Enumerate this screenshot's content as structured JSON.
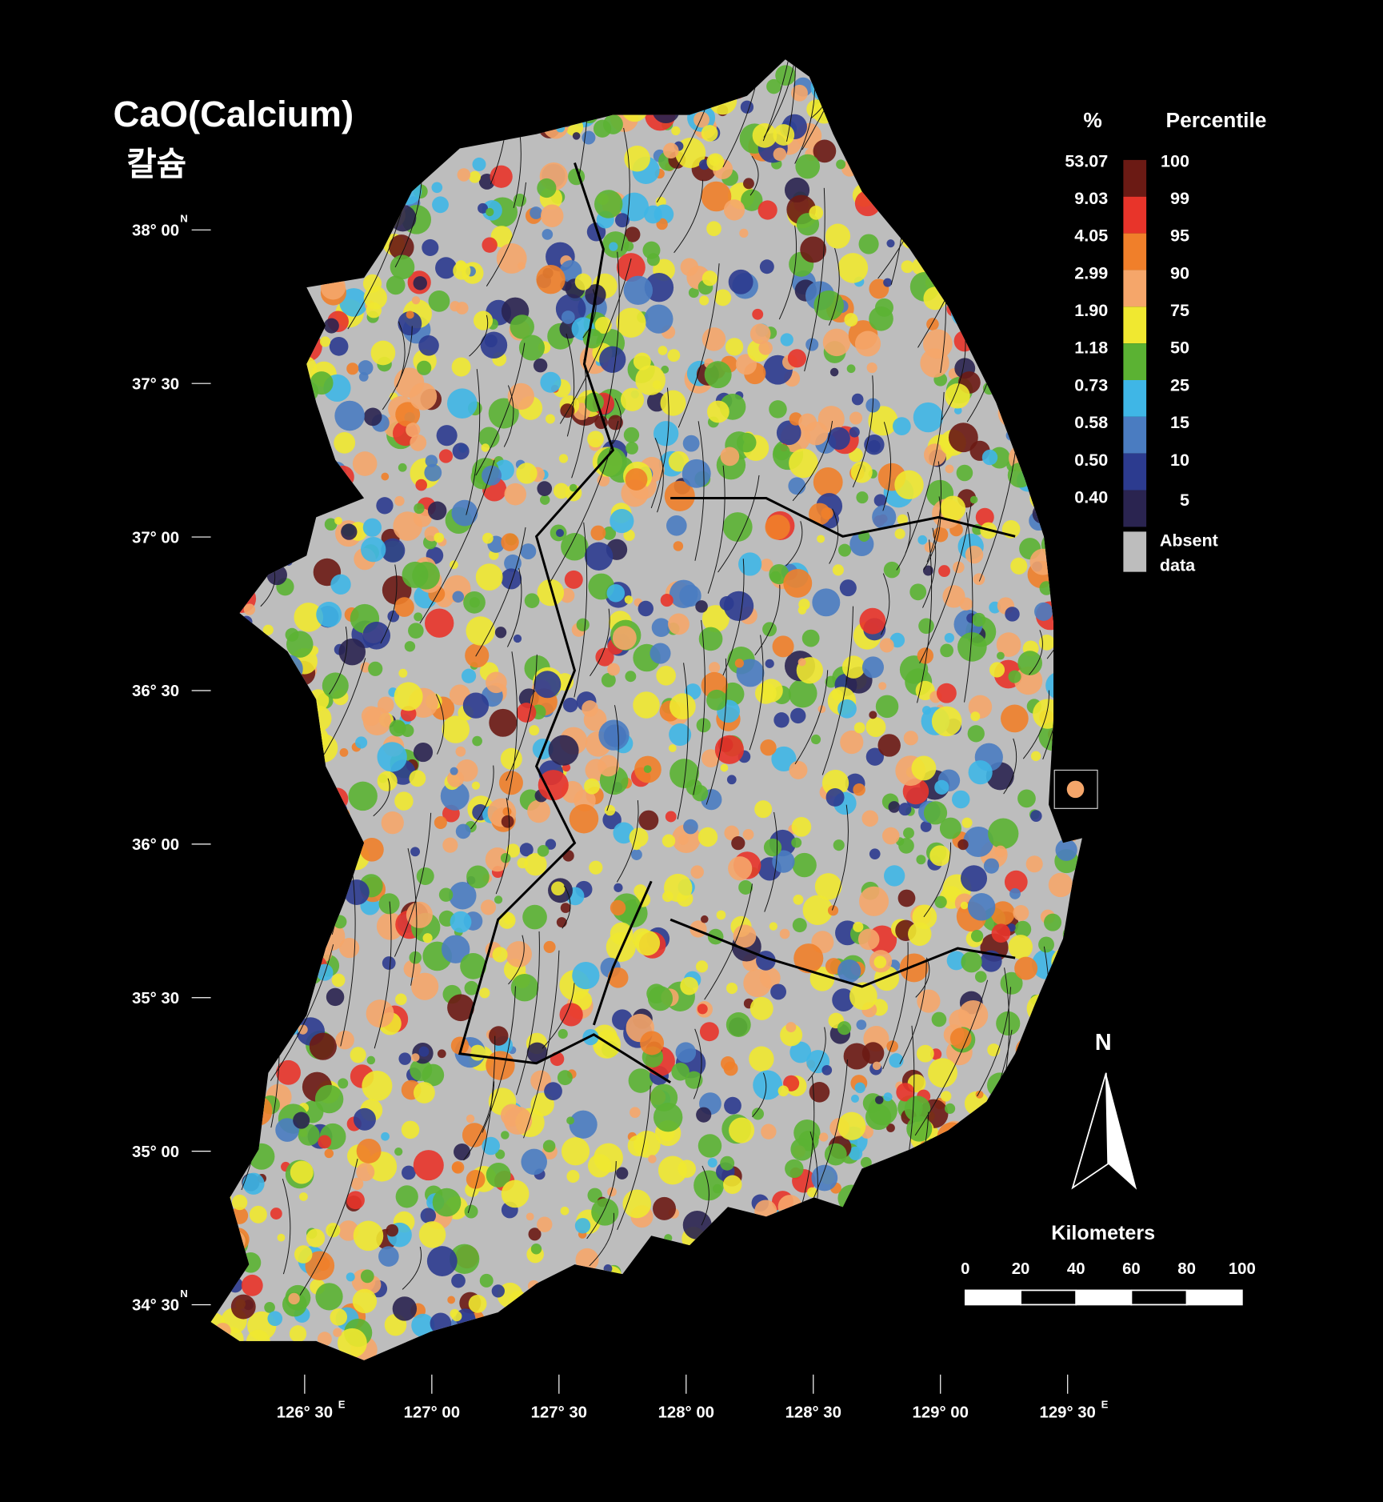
{
  "title": "CaO(Calcium)",
  "subtitle": "칼슘",
  "latitude_labels": [
    "38° 00",
    "37° 30",
    "37° 00",
    "36° 30",
    "36° 00",
    "35° 30",
    "35° 00",
    "34° 30"
  ],
  "latitude_hemisphere": "N",
  "longitude_labels": [
    "126° 30",
    "127° 00",
    "127° 30",
    "128° 00",
    "128° 30",
    "129° 00",
    "129° 30"
  ],
  "longitude_hemisphere": "E",
  "legend": {
    "percent_header": "%",
    "percentile_header": "Percentile",
    "percent_labels": [
      "53.07",
      "9.03",
      "4.05",
      "2.99",
      "1.90",
      "1.18",
      "0.73",
      "0.58",
      "0.50",
      "0.40"
    ],
    "percentile_labels": [
      "100",
      "99",
      "95",
      "90",
      "75",
      "50",
      "25",
      "15",
      "10",
      "5"
    ],
    "colors": [
      "#6b1a14",
      "#e8342a",
      "#f07f2a",
      "#f5a66a",
      "#f0e830",
      "#5bb233",
      "#3fb6e6",
      "#4a7cc1",
      "#2c3b8f",
      "#2a2450"
    ],
    "absent_label": [
      "Absent",
      "data"
    ],
    "absent_color": "#bdbdbd"
  },
  "north_arrow": "N",
  "scale_bar": {
    "title": "Kilometers",
    "ticks": [
      "0",
      "20",
      "40",
      "60",
      "80",
      "100"
    ]
  }
}
